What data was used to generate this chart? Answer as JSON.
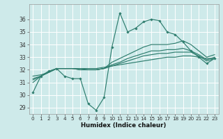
{
  "xlabel": "Humidex (Indice chaleur)",
  "xlim": [
    -0.5,
    23.5
  ],
  "ylim": [
    28.5,
    37.2
  ],
  "yticks": [
    29,
    30,
    31,
    32,
    33,
    34,
    35,
    36
  ],
  "xticks": [
    0,
    1,
    2,
    3,
    4,
    5,
    6,
    7,
    8,
    9,
    10,
    11,
    12,
    13,
    14,
    15,
    16,
    17,
    18,
    19,
    20,
    21,
    22,
    23
  ],
  "bg_color": "#ceeaea",
  "grid_color": "#b8d8d8",
  "line_color": "#2e7d6e",
  "series": {
    "line1": [
      30.2,
      31.5,
      31.9,
      32.1,
      31.5,
      31.3,
      31.3,
      29.3,
      28.8,
      29.8,
      33.8,
      36.5,
      35.0,
      35.3,
      35.8,
      36.0,
      35.9,
      35.0,
      34.8,
      34.2,
      33.5,
      33.0,
      32.5,
      32.9
    ],
    "line2": [
      31.5,
      31.6,
      31.8,
      32.1,
      32.1,
      32.1,
      32.1,
      32.1,
      32.1,
      32.2,
      32.3,
      32.4,
      32.5,
      32.6,
      32.7,
      32.8,
      32.9,
      33.0,
      33.0,
      33.1,
      33.1,
      33.0,
      32.9,
      32.9
    ],
    "line3": [
      31.3,
      31.5,
      31.8,
      32.1,
      32.1,
      32.1,
      32.1,
      32.0,
      32.0,
      32.1,
      32.3,
      32.5,
      32.7,
      32.9,
      33.1,
      33.2,
      33.3,
      33.3,
      33.4,
      33.4,
      33.4,
      33.1,
      32.7,
      32.9
    ],
    "line4": [
      31.2,
      31.5,
      31.8,
      32.1,
      32.1,
      32.1,
      32.0,
      32.0,
      32.0,
      32.1,
      32.4,
      32.6,
      32.9,
      33.1,
      33.3,
      33.5,
      33.5,
      33.6,
      33.6,
      33.7,
      33.5,
      33.2,
      32.8,
      33.0
    ],
    "line5": [
      31.0,
      31.5,
      31.8,
      32.1,
      32.1,
      32.1,
      32.0,
      32.0,
      32.0,
      32.1,
      32.6,
      32.9,
      33.2,
      33.5,
      33.8,
      34.0,
      34.0,
      34.0,
      34.1,
      34.3,
      34.0,
      33.5,
      33.0,
      33.2
    ]
  }
}
